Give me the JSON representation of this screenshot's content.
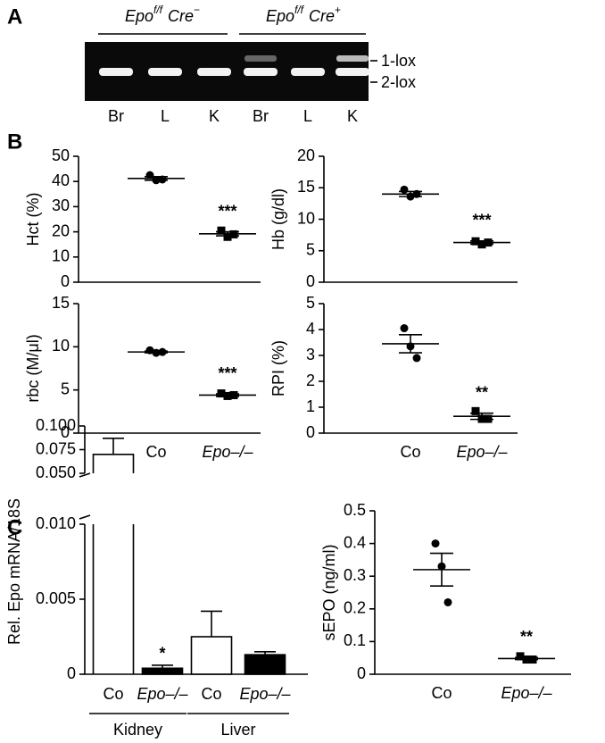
{
  "panel_labels": [
    "A",
    "B",
    "C"
  ],
  "gel": {
    "groups": [
      {
        "gene": "Epo",
        "allele": "f/f",
        "cre": "Cre",
        "cre_status": "−"
      },
      {
        "gene": "Epo",
        "allele": "f/f",
        "cre": "Cre",
        "cre_status": "+"
      }
    ],
    "lanes": [
      "Br",
      "L",
      "K",
      "Br",
      "L",
      "K"
    ],
    "bands": [
      "1-lox",
      "2-lox"
    ]
  },
  "chart_data": [
    {
      "type": "dot",
      "ylabel": "Hct (%)",
      "ylim": [
        0,
        50
      ],
      "yticks": [
        0,
        10,
        20,
        30,
        40,
        50
      ],
      "values": [
        [
          42.5,
          40.5,
          40.8
        ],
        [
          20.5,
          18,
          19
        ]
      ],
      "means": [
        41.2,
        19.2
      ],
      "sems": [
        0.7,
        0.8
      ],
      "markers": [
        "circle",
        "square"
      ],
      "annotation": {
        "text": "***",
        "category": 1
      }
    },
    {
      "type": "dot",
      "ylabel": "Hb (g/dl)",
      "ylim": [
        0,
        20
      ],
      "yticks": [
        0,
        5,
        10,
        15,
        20
      ],
      "values": [
        [
          14.7,
          13.6,
          14
        ],
        [
          6.5,
          6,
          6.3
        ]
      ],
      "means": [
        14,
        6.3
      ],
      "sems": [
        0.4,
        0.25
      ],
      "markers": [
        "circle",
        "square"
      ],
      "annotation": {
        "text": "***",
        "category": 1
      }
    },
    {
      "type": "dot",
      "ylabel": "rbc (M/μl)",
      "ylim": [
        0,
        15
      ],
      "yticks": [
        0,
        5,
        10,
        15
      ],
      "categories": [
        "Co",
        "Epo–/–"
      ],
      "values": [
        [
          9.6,
          9.3,
          9.4
        ],
        [
          4.6,
          4.3,
          4.4
        ]
      ],
      "means": [
        9.4,
        4.4
      ],
      "sems": [
        0.1,
        0.15
      ],
      "markers": [
        "circle",
        "square"
      ],
      "annotation": {
        "text": "***",
        "category": 1
      }
    },
    {
      "type": "dot",
      "ylabel": "RPI (%)",
      "ylim": [
        0,
        5
      ],
      "yticks": [
        0,
        1,
        2,
        3,
        4,
        5
      ],
      "categories": [
        "Co",
        "Epo–/–"
      ],
      "values": [
        [
          4.05,
          3.35,
          2.9
        ],
        [
          0.85,
          0.55,
          0.55
        ]
      ],
      "means": [
        3.45,
        0.65
      ],
      "sems": [
        0.35,
        0.12
      ],
      "markers": [
        "circle",
        "square"
      ],
      "annotation": {
        "text": "**",
        "category": 1
      }
    },
    {
      "type": "bar",
      "ylabel": "Rel. Epo mRNA/18S",
      "ylim": [
        0,
        0.1
      ],
      "y_break": [
        0.01,
        0.05
      ],
      "yticks": [
        0,
        0.005,
        {
          "value": 0.01,
          "label": "0.010"
        },
        {
          "value": 0.05,
          "label": "0.050"
        },
        0.075,
        {
          "value": 0.1,
          "label": "0.100"
        }
      ],
      "categories": [
        "Co",
        "Epo–/–",
        "Co",
        "Epo–/–"
      ],
      "groups": [
        "Kidney",
        "Liver"
      ],
      "values": [
        0.07,
        0.0004,
        0.0025,
        0.0013
      ],
      "errors": [
        0.017,
        0.0002,
        0.0017,
        0.0002
      ],
      "colors": [
        "#ffffff",
        "#000000",
        "#ffffff",
        "#000000"
      ],
      "annotation": {
        "text": "*",
        "category": 1
      }
    },
    {
      "type": "dot",
      "ylabel": "sEPO (ng/ml)",
      "ylim": [
        0,
        0.5
      ],
      "yticks": [
        0,
        0.1,
        0.2,
        0.3,
        0.4,
        0.5
      ],
      "categories": [
        "Co",
        "Epo–/–"
      ],
      "values": [
        [
          0.4,
          0.33,
          0.22
        ],
        [
          0.055,
          0.045,
          0.045
        ]
      ],
      "means": [
        0.32,
        0.048
      ],
      "sems": [
        0.05,
        0.003
      ],
      "markers": [
        "circle",
        "square"
      ],
      "annotation": {
        "text": "**",
        "category": 1
      }
    }
  ]
}
